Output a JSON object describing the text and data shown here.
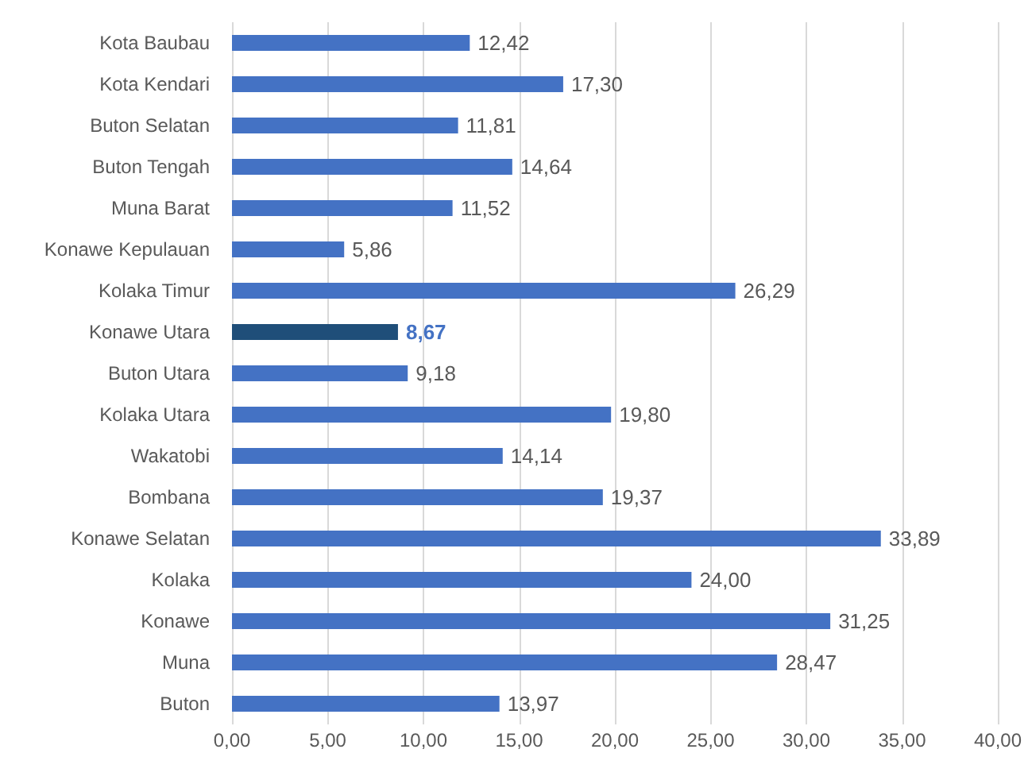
{
  "chart_data": {
    "type": "bar",
    "orientation": "horizontal",
    "categories": [
      "Kota Baubau",
      "Kota Kendari",
      "Buton Selatan",
      "Buton Tengah",
      "Muna Barat",
      "Konawe Kepulauan",
      "Kolaka Timur",
      "Konawe Utara",
      "Buton Utara",
      "Kolaka Utara",
      "Wakatobi",
      "Bombana",
      "Konawe Selatan",
      "Kolaka",
      "Konawe",
      "Muna",
      "Buton"
    ],
    "values": [
      12.42,
      17.3,
      11.81,
      14.64,
      11.52,
      5.86,
      26.29,
      8.67,
      9.18,
      19.8,
      14.14,
      19.37,
      33.89,
      24.0,
      31.25,
      28.47,
      13.97
    ],
    "colors": [
      "#4472c4",
      "#4472c4",
      "#4472c4",
      "#4472c4",
      "#4472c4",
      "#4472c4",
      "#4472c4",
      "#1f4e79",
      "#4472c4",
      "#4472c4",
      "#4472c4",
      "#4472c4",
      "#4472c4",
      "#4472c4",
      "#4472c4",
      "#4472c4",
      "#4472c4"
    ],
    "value_labels": [
      "12,42",
      "17,30",
      "11,81",
      "14,64",
      "11,52",
      "5,86",
      "26,29",
      "8,67",
      "9,18",
      "19,80",
      "14,14",
      "19,37",
      "33,89",
      "24,00",
      "31,25",
      "28,47",
      "13,97"
    ],
    "xlim": [
      0,
      40
    ],
    "xticks": [
      {
        "value": 0,
        "label": "0,00"
      },
      {
        "value": 5,
        "label": "5,00"
      },
      {
        "value": 10,
        "label": "10,00"
      },
      {
        "value": 15,
        "label": "15,00"
      },
      {
        "value": 20,
        "label": "20,00"
      },
      {
        "value": 25,
        "label": "25,00"
      },
      {
        "value": 30,
        "label": "30,00"
      },
      {
        "value": 35,
        "label": "35,00"
      },
      {
        "value": 40,
        "label": "40,00"
      }
    ],
    "grid": "x"
  }
}
